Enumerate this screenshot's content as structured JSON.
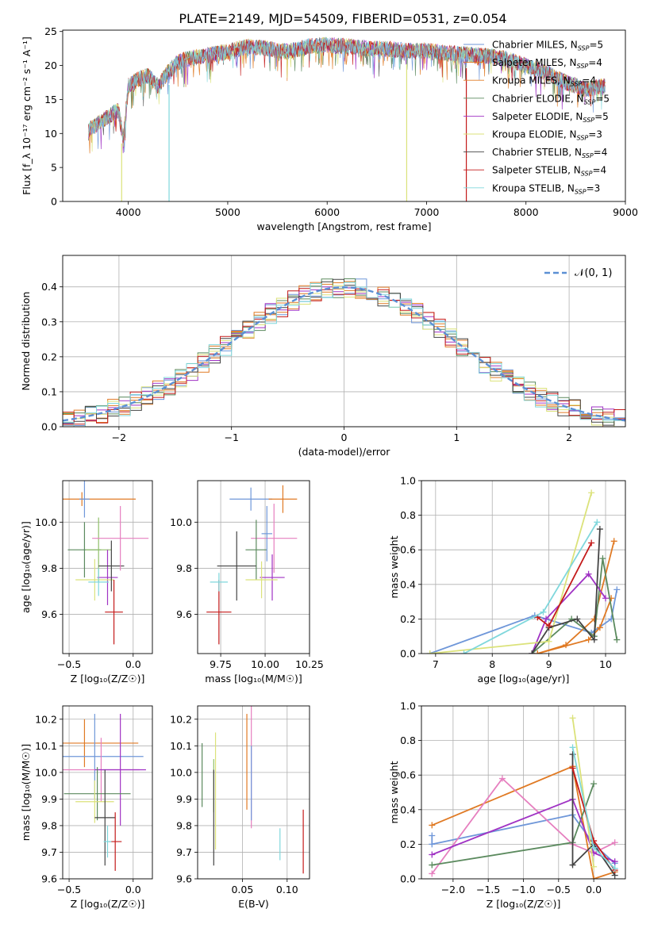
{
  "figure_title": "PLATE=2149, MJD=54509, FIBERID=0531, z=0.054",
  "colors": [
    "#6f97d9",
    "#e07a24",
    "#e07a24",
    "#5b8a5e",
    "#a033c4",
    "#dbe27a",
    "#444444",
    "#c41a1a",
    "#7fd7dc"
  ],
  "chart_data": [
    {
      "type": "line",
      "title": "PLATE=2149, MJD=54509, FIBERID=0531, z=0.054",
      "xlabel": "wavelength [Angstrom, rest frame]",
      "ylabel": "Flux [f_λ 10⁻¹⁷ erg cm⁻² s⁻¹ A⁻¹]",
      "xlim": [
        3340,
        9000
      ],
      "ylim": [
        0,
        25.2
      ],
      "xticks": [
        "4000",
        "5000",
        "6000",
        "7000",
        "8000",
        "9000"
      ],
      "yticks": [
        "0",
        "5",
        "10",
        "15",
        "20",
        "25"
      ],
      "legend": "top-right",
      "series_names": [
        "Chabrier MILES, NSSP=5",
        "Salpeter MILES, NSSP=4",
        "Kroupa MILES, NSSP=4",
        "Chabrier ELODIE, NSSP=5",
        "Salpeter ELODIE, NSSP=5",
        "Kroupa ELODIE, NSSP=3",
        "Chabrier STELIB, NSSP=4",
        "Salpeter STELIB, NSSP=4",
        "Kroupa STELIB, NSSP=3"
      ],
      "legend_labels": [
        {
          "pre": "Chabrier MILES, N",
          "sub": "SSP",
          "post": "=5"
        },
        {
          "pre": "Salpeter MILES, N",
          "sub": "SSP",
          "post": "=4"
        },
        {
          "pre": "Kroupa MILES, N",
          "sub": "SSP",
          "post": "=4"
        },
        {
          "pre": "Chabrier ELODIE, N",
          "sub": "SSP",
          "post": "=5"
        },
        {
          "pre": "Salpeter ELODIE, N",
          "sub": "SSP",
          "post": "=5"
        },
        {
          "pre": "Kroupa ELODIE, N",
          "sub": "SSP",
          "post": "=3"
        },
        {
          "pre": "Chabrier STELIB, N",
          "sub": "SSP",
          "post": "=4"
        },
        {
          "pre": "Salpeter STELIB, N",
          "sub": "SSP",
          "post": "=4"
        },
        {
          "pre": "Kroupa STELIB, N",
          "sub": "SSP",
          "post": "=3"
        }
      ],
      "spectrum_envelope": {
        "x": [
          3600,
          3700,
          3800,
          3900,
          3950,
          4000,
          4100,
          4200,
          4300,
          4400,
          4500,
          4600,
          4800,
          5000,
          5200,
          5400,
          5600,
          5800,
          6000,
          6200,
          6400,
          6600,
          6800,
          7000,
          7200,
          7400,
          7600,
          7800,
          8000,
          8200,
          8400,
          8600,
          8800
        ],
        "y": [
          10.5,
          11.5,
          12.5,
          13.5,
          9.0,
          17.0,
          18.0,
          18.5,
          17.0,
          19.0,
          20.5,
          21.0,
          21.5,
          22.0,
          22.8,
          22.5,
          22.0,
          22.8,
          23.0,
          22.8,
          22.5,
          22.4,
          22.2,
          22.2,
          21.8,
          21.6,
          21.4,
          21.0,
          20.0,
          19.0,
          17.5,
          16.5,
          17.0
        ]
      },
      "deep_lines_wavelength": [
        3933,
        4410,
        6800,
        7400
      ]
    },
    {
      "type": "histogram",
      "xlabel": "(data-model)/error",
      "ylabel": "Normed distribution",
      "xlim": [
        -2.5,
        2.5
      ],
      "ylim": [
        0,
        0.49
      ],
      "xticks": [
        "−2",
        "−1",
        "0",
        "1",
        "2"
      ],
      "yticks": [
        "0.0",
        "0.1",
        "0.2",
        "0.3",
        "0.4"
      ],
      "legend": "top-right",
      "curve_label": "𝒩(0, 1)",
      "bin_edges_start": -2.5,
      "bin_width": 0.1,
      "bin_centers_count": 50
    },
    {
      "type": "scatter",
      "xlabel": "Z [log₁₀(Z/Z☉)]",
      "ylabel": "age  [log₁₀(age/yr)]",
      "xlim": [
        -0.55,
        0.15
      ],
      "ylim": [
        9.43,
        10.18
      ],
      "xticks": [
        "−0.5",
        "0.0"
      ],
      "yticks": [
        "9.6",
        "9.8",
        "10.0"
      ],
      "points": [
        {
          "x": -0.38,
          "y": 9.88,
          "xerr": 0.13,
          "yerr": 0.12
        },
        {
          "x": -0.4,
          "y": 10.1,
          "xerr": 0.42,
          "yerr": 0.03
        },
        {
          "x": -0.38,
          "y": 10.1,
          "xerr": 0.04,
          "yerr": 0.08
        },
        {
          "x": -0.27,
          "y": 9.88,
          "xerr": 0.1,
          "yerr": 0.14
        },
        {
          "x": -0.2,
          "y": 9.76,
          "xerr": 0.08,
          "yerr": 0.12
        },
        {
          "x": -0.3,
          "y": 9.75,
          "xerr": 0.15,
          "yerr": 0.09
        },
        {
          "x": -0.17,
          "y": 9.81,
          "xerr": 0.1,
          "yerr": 0.11
        },
        {
          "x": -0.15,
          "y": 9.61,
          "xerr": 0.07,
          "yerr": 0.14
        },
        {
          "x": -0.27,
          "y": 9.74,
          "xerr": 0.08,
          "yerr": 0.06
        },
        {
          "x": -0.1,
          "y": 9.93,
          "xerr": 0.22,
          "yerr": 0.14
        }
      ]
    },
    {
      "type": "scatter",
      "xlabel": "mass [log₁₀(M/M☉)]",
      "ylabel": "",
      "xlim": [
        9.62,
        10.25
      ],
      "ylim": [
        9.43,
        10.18
      ],
      "xticks": [
        "9.75",
        "10.00",
        "10.25"
      ],
      "yticks": [
        "9.6",
        "9.8",
        "10.0"
      ],
      "points": [
        {
          "x": 9.92,
          "y": 10.1,
          "xerr": 0.12,
          "yerr": 0.05
        },
        {
          "x": 10.1,
          "y": 10.1,
          "xerr": 0.08,
          "yerr": 0.06
        },
        {
          "x": 10.05,
          "y": 9.93,
          "xerr": 0.13,
          "yerr": 0.15
        },
        {
          "x": 9.95,
          "y": 9.88,
          "xerr": 0.06,
          "yerr": 0.13
        },
        {
          "x": 10.04,
          "y": 9.76,
          "xerr": 0.07,
          "yerr": 0.1
        },
        {
          "x": 9.98,
          "y": 9.75,
          "xerr": 0.09,
          "yerr": 0.08
        },
        {
          "x": 9.84,
          "y": 9.81,
          "xerr": 0.11,
          "yerr": 0.15
        },
        {
          "x": 9.74,
          "y": 9.61,
          "xerr": 0.07,
          "yerr": 0.14
        },
        {
          "x": 9.74,
          "y": 9.74,
          "xerr": 0.05,
          "yerr": 0.04
        },
        {
          "x": 10.01,
          "y": 9.95,
          "xerr": 0.03,
          "yerr": 0.12
        }
      ]
    },
    {
      "type": "line",
      "xlabel": "age  [log₁₀(age/yr)]",
      "ylabel": "mass weight",
      "xlim": [
        6.75,
        10.35
      ],
      "ylim": [
        0,
        1.0
      ],
      "xticks": [
        "7",
        "8",
        "9",
        "10"
      ],
      "yticks": [
        "0.0",
        "0.2",
        "0.4",
        "0.6",
        "0.8",
        "1.0"
      ],
      "series": [
        {
          "name": "Chabrier MILES",
          "x": [
            6.9,
            8.75,
            9.75,
            10.1,
            10.2
          ],
          "y": [
            0.0,
            0.22,
            0.12,
            0.2,
            0.37
          ]
        },
        {
          "name": "Salpeter MILES",
          "x": [
            8.8,
            9.3,
            9.8,
            10.15
          ],
          "y": [
            0.0,
            0.05,
            0.2,
            0.65
          ]
        },
        {
          "name": "Kroupa MILES",
          "x": [
            8.8,
            9.7,
            9.9,
            10.1
          ],
          "y": [
            0.0,
            0.08,
            0.15,
            0.32
          ]
        },
        {
          "name": "Chabrier ELODIE",
          "x": [
            8.7,
            9.4,
            9.8,
            9.95,
            10.2
          ],
          "y": [
            0.0,
            0.2,
            0.1,
            0.55,
            0.08
          ]
        },
        {
          "name": "Salpeter ELODIE",
          "x": [
            8.7,
            8.95,
            9.7,
            10.0
          ],
          "y": [
            0.0,
            0.2,
            0.46,
            0.32
          ]
        },
        {
          "name": "Kroupa ELODIE",
          "x": [
            6.9,
            9.0,
            9.75
          ],
          "y": [
            0.0,
            0.07,
            0.93
          ]
        },
        {
          "name": "Chabrier STELIB",
          "x": [
            8.7,
            9.0,
            9.5,
            9.8,
            9.9
          ],
          "y": [
            0.0,
            0.15,
            0.2,
            0.08,
            0.72
          ]
        },
        {
          "name": "Salpeter STELIB",
          "x": [
            8.8,
            9.0,
            9.75
          ],
          "y": [
            0.21,
            0.16,
            0.64
          ]
        },
        {
          "name": "Kroupa STELIB",
          "x": [
            7.5,
            8.9,
            9.85
          ],
          "y": [
            0.0,
            0.24,
            0.76
          ]
        }
      ]
    },
    {
      "type": "scatter",
      "xlabel": "Z [log₁₀(Z/Z☉)]",
      "ylabel": "mass [log₁₀(M/M☉)]",
      "xlim": [
        -0.55,
        0.15
      ],
      "ylim": [
        9.6,
        10.25
      ],
      "xticks": [
        "−0.5",
        "0.0"
      ],
      "yticks": [
        "9.6",
        "9.7",
        "9.8",
        "9.9",
        "10.0",
        "10.1",
        "10.2"
      ],
      "points": [
        {
          "x": -0.38,
          "y": 10.11,
          "xerr": 0.42,
          "yerr": 0.09
        },
        {
          "x": -0.3,
          "y": 10.06,
          "xerr": 0.38,
          "yerr": 0.16
        },
        {
          "x": -0.25,
          "y": 10.01,
          "xerr": 0.3,
          "yerr": 0.12
        },
        {
          "x": -0.1,
          "y": 10.01,
          "xerr": 0.2,
          "yerr": 0.21
        },
        {
          "x": -0.28,
          "y": 9.92,
          "xerr": 0.26,
          "yerr": 0.1
        },
        {
          "x": -0.3,
          "y": 9.89,
          "xerr": 0.15,
          "yerr": 0.08
        },
        {
          "x": -0.22,
          "y": 9.83,
          "xerr": 0.08,
          "yerr": 0.18
        },
        {
          "x": -0.14,
          "y": 9.74,
          "xerr": 0.05,
          "yerr": 0.11
        },
        {
          "x": -0.2,
          "y": 9.74,
          "xerr": 0.03,
          "yerr": 0.06
        }
      ]
    },
    {
      "type": "scatter",
      "xlabel": "E(B-V)",
      "ylabel": "",
      "xlim": [
        0.0,
        0.125
      ],
      "ylim": [
        9.6,
        10.25
      ],
      "xticks": [
        "0.05",
        "0.10"
      ],
      "yticks": [
        "9.6",
        "9.7",
        "9.8",
        "9.9",
        "10.0",
        "10.1",
        "10.2"
      ],
      "points": [
        {
          "x": 0.005,
          "y": 9.99,
          "yerr": 0.12
        },
        {
          "x": 0.018,
          "y": 9.95,
          "yerr": 0.1
        },
        {
          "x": 0.02,
          "y": 9.93,
          "yerr": 0.22
        },
        {
          "x": 0.018,
          "y": 9.83,
          "yerr": 0.18
        },
        {
          "x": 0.055,
          "y": 10.04,
          "yerr": 0.18
        },
        {
          "x": 0.06,
          "y": 10.06,
          "yerr": 0.27
        },
        {
          "x": 0.06,
          "y": 9.96,
          "yerr": 0.14
        },
        {
          "x": 0.092,
          "y": 9.73,
          "yerr": 0.06
        },
        {
          "x": 0.118,
          "y": 9.74,
          "yerr": 0.12
        }
      ]
    },
    {
      "type": "line",
      "xlabel": "Z [log₁₀(Z/Z☉)]",
      "ylabel": "mass weight",
      "xlim": [
        -2.45,
        0.45
      ],
      "ylim": [
        0,
        1.0
      ],
      "xticks": [
        "−2.0",
        "−1.5",
        "−1.0",
        "−0.5",
        "0.0"
      ],
      "yticks": [
        "0.0",
        "0.2",
        "0.4",
        "0.6",
        "0.8",
        "1.0"
      ],
      "series": [
        {
          "name": "Chabrier MILES",
          "x": [
            -2.3,
            -2.3,
            -0.3,
            0.0,
            0.3
          ],
          "y": [
            0.25,
            0.2,
            0.37,
            0.2,
            0.09
          ]
        },
        {
          "name": "Kroupa MILES",
          "x": [
            -2.3,
            -0.3,
            0.0,
            0.3
          ],
          "y": [
            0.31,
            0.65,
            0.0,
            0.04
          ]
        },
        {
          "name": "Kroupa MILES 2",
          "x": [
            -2.3,
            -1.3,
            -0.3,
            0.0,
            0.3
          ],
          "y": [
            0.03,
            0.58,
            0.2,
            0.15,
            0.21
          ]
        },
        {
          "name": "Chabrier ELODIE",
          "x": [
            -2.3,
            -0.3,
            0.0
          ],
          "y": [
            0.08,
            0.21,
            0.55
          ]
        },
        {
          "name": "Salpeter ELODIE",
          "x": [
            -2.3,
            -0.3,
            0.0,
            0.3
          ],
          "y": [
            0.14,
            0.46,
            0.15,
            0.1
          ]
        },
        {
          "name": "Kroupa ELODIE",
          "x": [
            -0.3,
            0.0
          ],
          "y": [
            0.93,
            0.07
          ]
        },
        {
          "name": "Chabrier STELIB",
          "x": [
            -0.3,
            -0.3,
            0.0,
            0.3
          ],
          "y": [
            0.72,
            0.08,
            0.2,
            0.02
          ]
        },
        {
          "name": "Salpeter STELIB",
          "x": [
            -0.3,
            0.0,
            0.3
          ],
          "y": [
            0.64,
            0.22,
            0.05
          ]
        },
        {
          "name": "Kroupa STELIB",
          "x": [
            -0.3,
            0.0,
            0.3
          ],
          "y": [
            0.76,
            0.18,
            0.06
          ]
        }
      ]
    }
  ]
}
